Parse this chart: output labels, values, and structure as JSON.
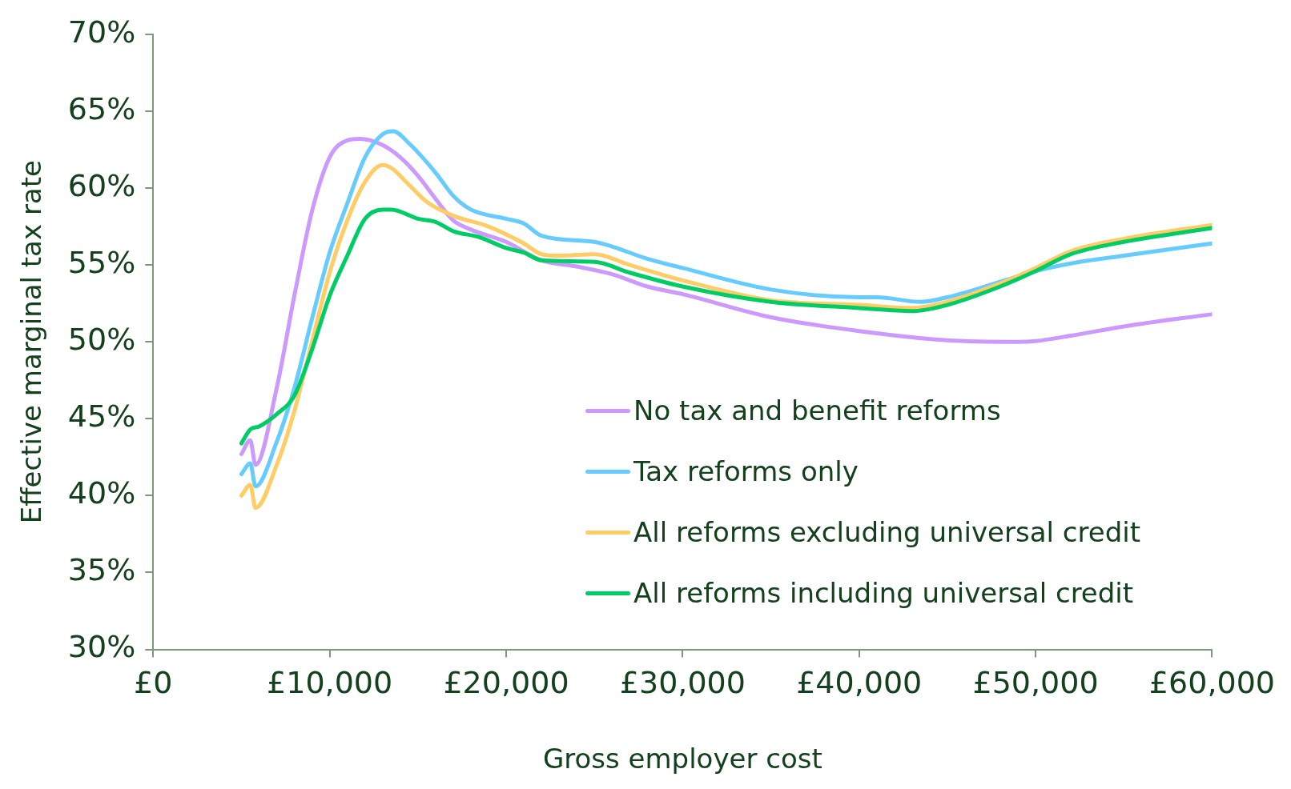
{
  "chart_data": {
    "type": "line",
    "xlabel": "Gross employer cost",
    "ylabel": "Effective marginal tax rate",
    "xlim": [
      0,
      60000
    ],
    "xticks": [
      {
        "value": 0,
        "label": "£0"
      },
      {
        "value": 10000,
        "label": "£10,000"
      },
      {
        "value": 20000,
        "label": "£20,000"
      },
      {
        "value": 30000,
        "label": "£30,000"
      },
      {
        "value": 40000,
        "label": "£40,000"
      },
      {
        "value": 50000,
        "label": "£50,000"
      },
      {
        "value": 60000,
        "label": "£60,000"
      }
    ],
    "ylim": [
      30,
      70
    ],
    "yticks": [
      {
        "value": 30,
        "label": "30%"
      },
      {
        "value": 35,
        "label": "35%"
      },
      {
        "value": 40,
        "label": "40%"
      },
      {
        "value": 45,
        "label": "45%"
      },
      {
        "value": 50,
        "label": "50%"
      },
      {
        "value": 55,
        "label": "55%"
      },
      {
        "value": 60,
        "label": "60%"
      },
      {
        "value": 65,
        "label": "65%"
      },
      {
        "value": 70,
        "label": "70%"
      }
    ],
    "grid": false,
    "legend": "bottom right",
    "marker": "none",
    "line_style": "solid",
    "series": [
      {
        "name": "No tax and benefit reforms",
        "color": "#cc99ff",
        "x": [
          5000,
          5500,
          5800,
          7000,
          8000,
          9000,
          10000,
          11000,
          11700,
          13000,
          14000,
          15000,
          16000,
          17000,
          18000,
          20000,
          22000,
          24000,
          26000,
          28000,
          30000,
          35000,
          40000,
          45000,
          49000,
          50000,
          52000,
          55000,
          60000
        ],
        "values": [
          42.7,
          43.6,
          42.0,
          47.0,
          53.0,
          58.5,
          62.0,
          63.1,
          63.2,
          62.8,
          62.0,
          60.8,
          59.3,
          57.9,
          57.3,
          56.5,
          55.3,
          54.9,
          54.4,
          53.6,
          53.1,
          51.6,
          50.7,
          50.1,
          50.0,
          50.05,
          50.4,
          51.0,
          51.8
        ]
      },
      {
        "name": "Tax reforms only",
        "color": "#66ccff",
        "x": [
          5000,
          5500,
          5800,
          7000,
          8000,
          9000,
          10000,
          11000,
          12000,
          13000,
          13600,
          14500,
          16000,
          17000,
          18000,
          20000,
          21000,
          22000,
          25000,
          26000,
          28000,
          30000,
          35000,
          40000,
          41000,
          43500,
          45000,
          48000,
          50000,
          52000,
          55000,
          60000
        ],
        "values": [
          41.4,
          42.1,
          40.6,
          43.5,
          47.0,
          51.5,
          55.8,
          59.0,
          62.0,
          63.5,
          63.7,
          62.9,
          61.0,
          59.5,
          58.6,
          58.0,
          57.7,
          56.9,
          56.5,
          56.2,
          55.4,
          54.8,
          53.4,
          52.9,
          52.9,
          52.6,
          52.9,
          53.9,
          54.6,
          55.1,
          55.6,
          56.4
        ]
      },
      {
        "name": "All reforms excluding universal credit",
        "color": "#ffcc66",
        "x": [
          5000,
          5500,
          5800,
          7000,
          8000,
          9000,
          10000,
          11000,
          12000,
          13000,
          13500,
          14500,
          15500,
          17000,
          19000,
          21000,
          22000,
          23000,
          25000,
          27000,
          30000,
          35000,
          40000,
          43000,
          45000,
          48000,
          50000,
          52000,
          55000,
          60000
        ],
        "values": [
          40.0,
          40.7,
          39.2,
          42.0,
          45.5,
          50.0,
          54.5,
          57.9,
          60.4,
          61.5,
          61.3,
          60.2,
          59.1,
          58.2,
          57.5,
          56.4,
          55.7,
          55.6,
          55.7,
          55.0,
          54.0,
          52.7,
          52.4,
          52.2,
          52.6,
          53.8,
          54.8,
          55.9,
          56.7,
          57.6
        ]
      },
      {
        "name": "All reforms including universal credit",
        "color": "#00cc66",
        "x": [
          5000,
          5500,
          6000,
          7000,
          8000,
          9000,
          10000,
          11000,
          12000,
          13000,
          13500,
          15000,
          16000,
          17000,
          18500,
          20000,
          21000,
          22000,
          25000,
          27000,
          30000,
          35000,
          40000,
          43000,
          45000,
          48000,
          50000,
          52000,
          55000,
          60000
        ],
        "values": [
          43.4,
          44.3,
          44.5,
          45.3,
          46.5,
          49.5,
          53.0,
          55.6,
          58.0,
          58.6,
          58.6,
          58.0,
          57.8,
          57.2,
          56.8,
          56.1,
          55.8,
          55.3,
          55.2,
          54.5,
          53.6,
          52.6,
          52.2,
          52.0,
          52.4,
          53.6,
          54.6,
          55.7,
          56.5,
          57.4
        ]
      }
    ]
  }
}
